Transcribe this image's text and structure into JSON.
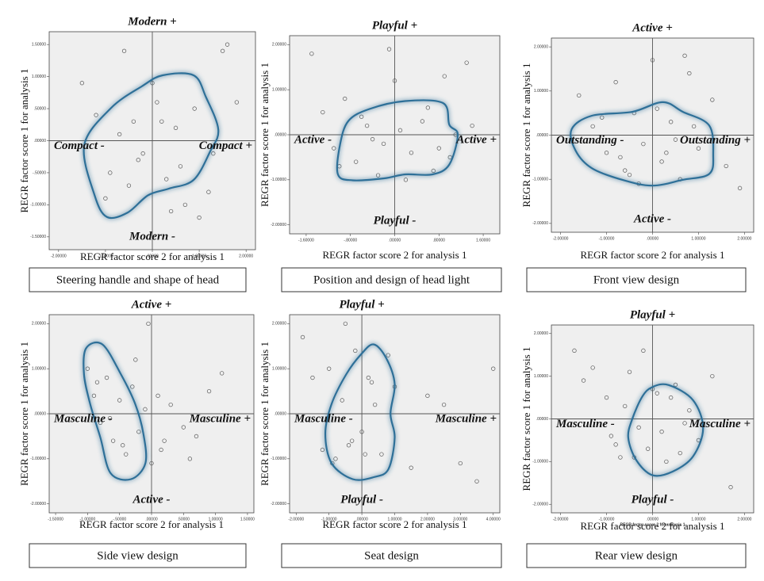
{
  "chart_data": [
    {
      "type": "scatter",
      "title": "Steering handle and shape of head",
      "xlabel": "REGR factor score 2 for analysis 1",
      "ylabel": "REGR factor score 1 for analysis 1",
      "annotations": {
        "top": "Modern +",
        "bottom": "Modern -",
        "left": "Compact -",
        "right": "Compact +"
      },
      "x": [
        -1.5,
        -1.2,
        -0.9,
        -0.6,
        -0.4,
        -0.2,
        0.1,
        0.3,
        0.5,
        0.7,
        0.9,
        1.2,
        1.5,
        1.8,
        -1.0,
        -0.7,
        -0.3,
        0.2,
        0.6,
        1.0,
        -0.5,
        0.0,
        0.4,
        1.3,
        1.6
      ],
      "y": [
        0.9,
        0.4,
        -0.5,
        1.4,
        0.3,
        -0.2,
        0.6,
        -0.6,
        0.2,
        -1.0,
        0.5,
        -0.8,
        1.4,
        0.6,
        -0.9,
        0.1,
        -0.3,
        0.3,
        -0.4,
        -1.2,
        -0.7,
        0.9,
        -1.1,
        -0.2,
        1.5
      ],
      "xlim": [
        -2.2,
        2.2
      ],
      "ylim": [
        -1.7,
        1.7
      ],
      "xticks": [
        {
          "value": -2,
          "label": "-2.00000"
        },
        {
          "value": -1,
          "label": "-1.00000"
        },
        {
          "value": 0,
          "label": ".00000"
        },
        {
          "value": 1,
          "label": "1.00000"
        },
        {
          "value": 2,
          "label": "2.00000"
        }
      ],
      "yticks": [
        {
          "value": -1.5,
          "label": "-1.50000"
        },
        {
          "value": -1,
          "label": "-1.00000"
        },
        {
          "value": -0.5,
          "label": "-.50000"
        },
        {
          "value": 0,
          "label": ".00000"
        },
        {
          "value": 0.5,
          "label": ".50000"
        },
        {
          "value": 1,
          "label": "1.00000"
        },
        {
          "value": 1.5,
          "label": "1.50000"
        }
      ]
    },
    {
      "type": "scatter",
      "title": "Position and design of head light",
      "xlabel": "REGR factor score 2 for analysis 1",
      "ylabel": "REGR factor score 1 for analysis 1",
      "annotations": {
        "top": "Playful +",
        "bottom": "Playful -",
        "left": "Active -",
        "right": "Active +"
      },
      "x": [
        -1.5,
        -1.3,
        -1.1,
        -0.9,
        -0.7,
        -0.5,
        -0.3,
        -0.1,
        0.1,
        0.3,
        0.5,
        0.7,
        0.9,
        1.1,
        1.3,
        -1.0,
        -0.6,
        -0.2,
        0.2,
        0.6,
        1.0,
        1.4,
        -0.4,
        0.0,
        0.8
      ],
      "y": [
        1.8,
        0.5,
        -0.3,
        0.8,
        -0.6,
        0.2,
        -0.9,
        1.9,
        0.1,
        -0.4,
        0.3,
        -0.8,
        1.3,
        0.0,
        1.6,
        -0.7,
        0.4,
        -0.2,
        -1.0,
        0.6,
        -0.5,
        0.2,
        -0.1,
        1.2,
        -0.3
      ],
      "xlim": [
        -1.9,
        1.9
      ],
      "ylim": [
        -2.2,
        2.2
      ],
      "xticks": [
        {
          "value": -1.6,
          "label": "-1.60000"
        },
        {
          "value": -0.8,
          "label": "-.80000"
        },
        {
          "value": 0,
          "label": ".00000"
        },
        {
          "value": 0.8,
          "label": ".80000"
        },
        {
          "value": 1.6,
          "label": "1.60000"
        }
      ],
      "yticks": [
        {
          "value": -2,
          "label": "-2.00000"
        },
        {
          "value": -1,
          "label": "-1.00000"
        },
        {
          "value": 0,
          "label": ".00000"
        },
        {
          "value": 1,
          "label": "1.00000"
        },
        {
          "value": 2,
          "label": "2.00000"
        }
      ]
    },
    {
      "type": "scatter",
      "title": "Front view design",
      "xlabel": "REGR factor score 2 for analysis 1",
      "ylabel": "REGR factor score 1 for analysis 1",
      "annotations": {
        "top": "Active +",
        "bottom": "Active -",
        "left": "Outstanding -",
        "right": "Outstanding +"
      },
      "x": [
        -1.6,
        -1.3,
        -1.0,
        -0.8,
        -0.6,
        -0.4,
        -0.2,
        0.0,
        0.2,
        0.4,
        0.6,
        0.8,
        1.0,
        1.3,
        1.6,
        -1.1,
        -0.7,
        -0.3,
        0.1,
        0.5,
        0.9,
        -0.5,
        0.3,
        0.7,
        1.9
      ],
      "y": [
        0.9,
        0.2,
        -0.4,
        1.2,
        -0.8,
        0.5,
        -0.2,
        1.7,
        -0.6,
        0.3,
        -1.0,
        1.4,
        -0.3,
        0.8,
        -0.7,
        0.4,
        -0.5,
        -1.1,
        0.6,
        -0.1,
        0.2,
        -0.9,
        -0.4,
        1.8,
        -1.2
      ],
      "xlim": [
        -2.2,
        2.2
      ],
      "ylim": [
        -2.2,
        2.2
      ],
      "xticks": [
        {
          "value": -2,
          "label": "-2.00000"
        },
        {
          "value": -1,
          "label": "-1.00000"
        },
        {
          "value": 0,
          "label": ".00000"
        },
        {
          "value": 1,
          "label": "1.00000"
        },
        {
          "value": 2,
          "label": "2.00000"
        }
      ],
      "yticks": [
        {
          "value": -2,
          "label": "-2.00000"
        },
        {
          "value": -1,
          "label": "-1.00000"
        },
        {
          "value": 0,
          "label": ".00000"
        },
        {
          "value": 1,
          "label": "1.00000"
        },
        {
          "value": 2,
          "label": "2.00000"
        }
      ]
    },
    {
      "type": "scatter",
      "title": "Side view design",
      "xlabel": "REGR factor score 2 for analysis 1",
      "ylabel": "REGR factor score 1 for analysis 1",
      "annotations": {
        "top": "Active +",
        "bottom": "Active -",
        "left": "Masculine -",
        "right": "Masculine +"
      },
      "x": [
        -1.0,
        -0.9,
        -0.8,
        -0.7,
        -0.6,
        -0.5,
        -0.4,
        -0.3,
        -0.2,
        -0.1,
        0.0,
        0.1,
        0.2,
        0.3,
        0.5,
        0.7,
        0.9,
        1.1,
        -0.85,
        -0.65,
        -0.45,
        -0.25,
        -0.05,
        0.15,
        0.6
      ],
      "y": [
        1.0,
        0.4,
        -0.2,
        0.8,
        -0.6,
        0.3,
        -0.9,
        0.6,
        -0.4,
        0.1,
        -1.1,
        0.4,
        -0.6,
        0.2,
        -0.3,
        -0.5,
        0.5,
        0.9,
        0.7,
        -0.1,
        -0.7,
        1.2,
        2.0,
        -0.8,
        -1.0
      ],
      "xlim": [
        -1.6,
        1.6
      ],
      "ylim": [
        -2.2,
        2.2
      ],
      "xticks": [
        {
          "value": -1.5,
          "label": "-1.50000"
        },
        {
          "value": -1,
          "label": "-1.00000"
        },
        {
          "value": -0.5,
          "label": "-.50000"
        },
        {
          "value": 0,
          "label": ".00000"
        },
        {
          "value": 0.5,
          "label": ".50000"
        },
        {
          "value": 1,
          "label": "1.00000"
        },
        {
          "value": 1.5,
          "label": "1.50000"
        }
      ],
      "yticks": [
        {
          "value": -2,
          "label": "-2.00000"
        },
        {
          "value": -1,
          "label": "-1.00000"
        },
        {
          "value": 0,
          "label": ".00000"
        },
        {
          "value": 1,
          "label": "1.00000"
        },
        {
          "value": 2,
          "label": "2.00000"
        }
      ]
    },
    {
      "type": "scatter",
      "title": "Seat design",
      "xlabel": "REGR factor score 2 for analysis 1",
      "ylabel": "REGR factor score 1 for analysis 1",
      "annotations": {
        "top": "Playful +",
        "bottom": "Playful -",
        "left": "Masculine -",
        "right": "Masculine +"
      },
      "x": [
        -1.8,
        -1.5,
        -1.2,
        -1.0,
        -0.8,
        -0.6,
        -0.4,
        -0.2,
        0.0,
        0.2,
        0.4,
        0.6,
        0.8,
        1.0,
        1.5,
        2.0,
        2.5,
        3.0,
        3.5,
        4.0,
        -0.9,
        -0.3,
        0.3,
        -0.5,
        0.1
      ],
      "y": [
        1.7,
        0.8,
        -0.8,
        1.0,
        -1.0,
        0.3,
        -0.7,
        1.4,
        -0.4,
        0.8,
        0.2,
        -0.9,
        1.3,
        0.6,
        -1.2,
        0.4,
        0.2,
        -1.1,
        -1.5,
        1.0,
        -1.1,
        -0.6,
        0.7,
        2.0,
        -0.9
      ],
      "xlim": [
        -2.2,
        4.2
      ],
      "ylim": [
        -2.2,
        2.2
      ],
      "xticks": [
        {
          "value": -2,
          "label": "-2.00000"
        },
        {
          "value": -1,
          "label": "-1.00000"
        },
        {
          "value": 0,
          "label": ".00000"
        },
        {
          "value": 1,
          "label": "1.00000"
        },
        {
          "value": 2,
          "label": "2.00000"
        },
        {
          "value": 3,
          "label": "3.00000"
        },
        {
          "value": 4,
          "label": "4.00000"
        }
      ],
      "yticks": [
        {
          "value": -2,
          "label": "-2.00000"
        },
        {
          "value": -1,
          "label": "-1.00000"
        },
        {
          "value": 0,
          "label": ".00000"
        },
        {
          "value": 1,
          "label": "1.00000"
        },
        {
          "value": 2,
          "label": "2.00000"
        }
      ]
    },
    {
      "type": "scatter",
      "title": "Rear view design",
      "xlabel": "REGR factor score 2 for analysis 1",
      "inner_xlabel": "REGR factor score  2 for analysis 1",
      "ylabel": "REGR factor score 1 for analysis 1",
      "annotations": {
        "top": "Playful +",
        "bottom": "Playful -",
        "left": "Masculine -",
        "right": "Masculine +"
      },
      "x": [
        -1.7,
        -1.3,
        -1.0,
        -0.8,
        -0.6,
        -0.4,
        -0.2,
        0.0,
        0.2,
        0.4,
        0.6,
        0.8,
        1.0,
        1.3,
        1.7,
        -0.9,
        -0.7,
        -0.5,
        -0.3,
        0.1,
        0.3,
        0.5,
        -0.1,
        0.7,
        -1.5
      ],
      "y": [
        1.6,
        1.2,
        0.5,
        -0.6,
        0.3,
        -0.9,
        1.6,
        0.7,
        -0.3,
        0.5,
        -0.8,
        0.2,
        -0.5,
        1.0,
        -1.6,
        -0.4,
        -0.9,
        1.1,
        -0.2,
        0.6,
        -1.0,
        0.8,
        -0.7,
        -0.1,
        0.9
      ],
      "xlim": [
        -2.2,
        2.2
      ],
      "ylim": [
        -2.2,
        2.2
      ],
      "xticks": [
        {
          "value": -2,
          "label": "-2.00000"
        },
        {
          "value": -1,
          "label": "-1.00000"
        },
        {
          "value": 0,
          "label": ".00000"
        },
        {
          "value": 1,
          "label": "1.00000"
        },
        {
          "value": 2,
          "label": "2.00000"
        }
      ],
      "yticks": [
        {
          "value": -2,
          "label": "-2.00000"
        },
        {
          "value": -1,
          "label": "-1.00000"
        },
        {
          "value": 0,
          "label": ".00000"
        },
        {
          "value": 1,
          "label": "1.00000"
        },
        {
          "value": 2,
          "label": "2.00000"
        }
      ]
    }
  ]
}
